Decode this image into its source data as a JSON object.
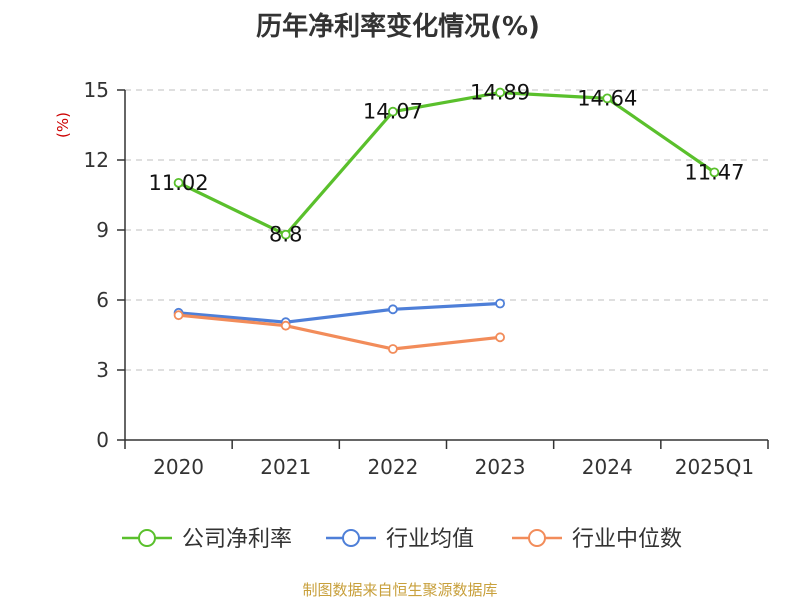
{
  "chart_data": {
    "type": "line",
    "title": "历年净利率变化情况(%)",
    "ylabel": "(%)",
    "categories": [
      "2020",
      "2021",
      "2022",
      "2023",
      "2024",
      "2025Q1"
    ],
    "ylim": [
      0,
      15
    ],
    "yticks": [
      "0",
      "3",
      "6",
      "9",
      "12",
      "15"
    ],
    "grid": true,
    "legend_position": "bottom",
    "series": [
      {
        "name": "公司净利率",
        "values": [
          11.02,
          8.8,
          14.07,
          14.89,
          14.64,
          11.47
        ],
        "color": "#5ac02c",
        "labels": [
          "11.02",
          "8.8",
          "14.07",
          "14.89",
          "14.64",
          "11.47"
        ]
      },
      {
        "name": "行业均值",
        "values": [
          5.45,
          5.05,
          5.6,
          5.85,
          null,
          null
        ],
        "color": "#4e7fd8"
      },
      {
        "name": "行业中位数",
        "values": [
          5.35,
          4.9,
          3.9,
          4.4,
          null,
          null
        ],
        "color": "#f28c5a"
      }
    ]
  },
  "source": "制图数据来自恒生聚源数据库",
  "colors": {
    "ylabel": "#cc0000",
    "source": "#c8a03c",
    "grid": "#cccccc",
    "axis": "#333333"
  }
}
